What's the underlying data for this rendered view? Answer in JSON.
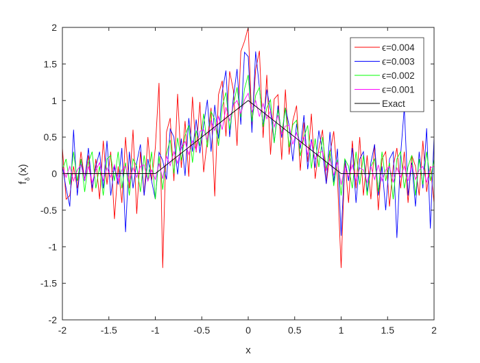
{
  "chart_data": {
    "type": "line",
    "title": "",
    "xlabel": "x",
    "ylabel_main": "f",
    "ylabel_sub": "δ",
    "ylabel_tail": "(x)",
    "xlim": [
      -2,
      2
    ],
    "ylim": [
      -2,
      2
    ],
    "xticks": [
      "-2",
      "-1.5",
      "-1",
      "-0.5",
      "0",
      "0.5",
      "1",
      "1.5",
      "2"
    ],
    "yticks": [
      "-2",
      "-1.5",
      "-1",
      "-0.5",
      "0",
      "0.5",
      "1",
      "1.5",
      "2"
    ],
    "grid": false,
    "legend_position": "top-right",
    "x_start": -2,
    "x_step": 0.04,
    "exact": "max(0, 1-|x|)",
    "series": [
      {
        "name": "ϵ=0.004",
        "color": "#ff0000",
        "noise": [
          0.35,
          -0.35,
          -0.3,
          0.1,
          -0.2,
          0.3,
          -0.1,
          0.25,
          -0.25,
          0.2,
          -0.35,
          0.45,
          -0.15,
          0.3,
          -0.62,
          0.1,
          -0.4,
          0.5,
          -0.2,
          0.6,
          -0.55,
          0.3,
          -0.3,
          0.5,
          -0.1,
          0.35,
          1.2,
          -1.37,
          0.45,
          0.6,
          -0.3,
          0.85,
          -0.2,
          0.4,
          -0.4,
          0.65,
          -0.15,
          0.5,
          -0.5,
          -0.1,
          0.3,
          -0.95,
          0.4,
          0.55,
          -0.25,
          0.6,
          0.3,
          -0.5,
          0.75,
          0.85,
          1.0,
          -0.3,
          0.5,
          0.8,
          -0.35,
          0.55,
          -0.5,
          0.3,
          0.4,
          -0.45,
          0.55,
          -0.3,
          0.2,
          0.45,
          -0.4,
          0.3,
          -0.2,
          0.5,
          -0.35,
          0.1,
          0.4,
          -0.3,
          0.15,
          0.5,
          -0.1,
          -1.29,
          0.2,
          -0.4,
          0.45,
          -0.2,
          0.5,
          -0.3,
          0.25,
          -0.35,
          0.4,
          -0.5,
          0.2,
          0.3,
          -0.45,
          0.1,
          0.35,
          -0.2,
          0.3,
          -0.4,
          0.25,
          0.1,
          -0.3,
          0.45,
          -0.25,
          0.1,
          -0.4
        ]
      },
      {
        "name": "ϵ=0.003",
        "color": "#0000ff",
        "noise": [
          0.1,
          -0.2,
          -0.45,
          0.6,
          -0.3,
          0.2,
          -0.1,
          0.35,
          -0.2,
          0.1,
          0.3,
          -0.2,
          0.45,
          -0.3,
          0.1,
          -0.15,
          0.35,
          -0.8,
          0.3,
          -0.2,
          0.15,
          0.4,
          -0.3,
          0.2,
          -0.1,
          -0.35,
          0.25,
          0.1,
          -0.2,
          0.45,
          0.3,
          -0.25,
          0.2,
          -0.35,
          0.4,
          -0.1,
          0.3,
          -0.2,
          0.15,
          0.45,
          -0.3,
          0.3,
          -0.2,
          0.4,
          0.65,
          -0.3,
          0.2,
          0.55,
          -0.25,
          0.7,
          0.6,
          -0.4,
          0.75,
          0.3,
          -0.2,
          0.35,
          0.1,
          -0.3,
          0.25,
          -0.15,
          0.3,
          0.1,
          -0.35,
          0.2,
          -0.1,
          0.4,
          -0.3,
          0.15,
          -0.2,
          0.35,
          0.1,
          -0.3,
          0.45,
          -0.2,
          0.3,
          -0.85,
          0.2,
          -0.1,
          0.35,
          -0.4,
          0.2,
          0.3,
          -0.25,
          0.15,
          0.4,
          -0.3,
          0.1,
          -0.5,
          0.2,
          0.3,
          -0.88,
          0.25,
          0.9,
          -0.3,
          0.15,
          -0.45,
          0.3,
          -0.2,
          0.62,
          -0.75,
          0.5
        ]
      },
      {
        "name": "ϵ=0.002",
        "color": "#00ff00",
        "noise": [
          0.05,
          0.2,
          -0.15,
          0.3,
          -0.1,
          0.2,
          -0.25,
          0.15,
          0.3,
          -0.2,
          0.1,
          -0.3,
          0.2,
          0.25,
          -0.1,
          0.3,
          -0.2,
          0.15,
          -0.3,
          0.2,
          0.1,
          -0.25,
          0.25,
          -0.1,
          0.3,
          -0.35,
          0.2,
          -0.3,
          0.15,
          0.3,
          -0.2,
          0.25,
          -0.1,
          0.2,
          0.3,
          -0.25,
          0.15,
          -0.1,
          0.3,
          -0.2,
          0.25,
          0.1,
          -0.3,
          0.2,
          0.35,
          -0.2,
          0.1,
          0.3,
          -0.15,
          0.2,
          0.35,
          -0.25,
          0.15,
          0.3,
          -0.2,
          0.1,
          0.25,
          -0.3,
          0.2,
          -0.1,
          0.3,
          -0.2,
          0.15,
          0.25,
          -0.2,
          0.1,
          0.3,
          -0.25,
          0.2,
          -0.15,
          0.3,
          -0.1,
          0.2,
          -0.25,
          0.15,
          -0.3,
          0.2,
          0.1,
          -0.2,
          0.3,
          -0.15,
          0.25,
          -0.3,
          0.1,
          0.2,
          -0.25,
          0.3,
          -0.1,
          0.15,
          -0.35,
          0.2,
          0.3,
          -0.2,
          0.1,
          0.25,
          -0.3,
          0.2,
          -0.15,
          0.3,
          -0.1,
          0.2
        ]
      },
      {
        "name": "ϵ=0.001",
        "color": "#ff00ff",
        "noise": [
          0.1,
          -0.05,
          0.1,
          -0.1,
          0.05,
          0.12,
          -0.08,
          0.1,
          -0.12,
          0.05,
          0.15,
          -0.1,
          0.08,
          -0.05,
          0.12,
          -0.1,
          0.05,
          0.1,
          -0.12,
          0.08,
          -0.05,
          0.1,
          0.12,
          -0.1,
          0.05,
          -0.08,
          0.1,
          -0.15,
          0.12,
          -0.05,
          0.1,
          -0.1,
          0.08,
          0.12,
          -0.1,
          0.05,
          -0.12,
          0.1,
          0.08,
          -0.1,
          0.12,
          -0.05,
          0.1,
          -0.12,
          0.15,
          -0.08,
          0.1,
          0.12,
          -0.1,
          0.05,
          0.1,
          -0.12,
          0.08,
          -0.1,
          0.12,
          -0.05,
          0.1,
          -0.08,
          0.12,
          -0.1,
          0.05,
          0.1,
          -0.12,
          0.08,
          -0.05,
          0.1,
          -0.1,
          0.12,
          -0.08,
          0.05,
          0.1,
          -0.12,
          0.08,
          -0.1,
          0.12,
          -0.15,
          0.1,
          -0.05,
          0.12,
          -0.1,
          0.08,
          0.05,
          -0.12,
          0.1,
          -0.08,
          0.12,
          -0.1,
          0.05,
          0.1,
          -0.12,
          0.08,
          -0.05,
          0.1,
          -0.1,
          0.12,
          -0.08,
          0.05,
          0.1,
          -0.12,
          0.08,
          0.1
        ]
      },
      {
        "name": "Exact",
        "color": "#000000",
        "exact_only": true
      }
    ]
  }
}
